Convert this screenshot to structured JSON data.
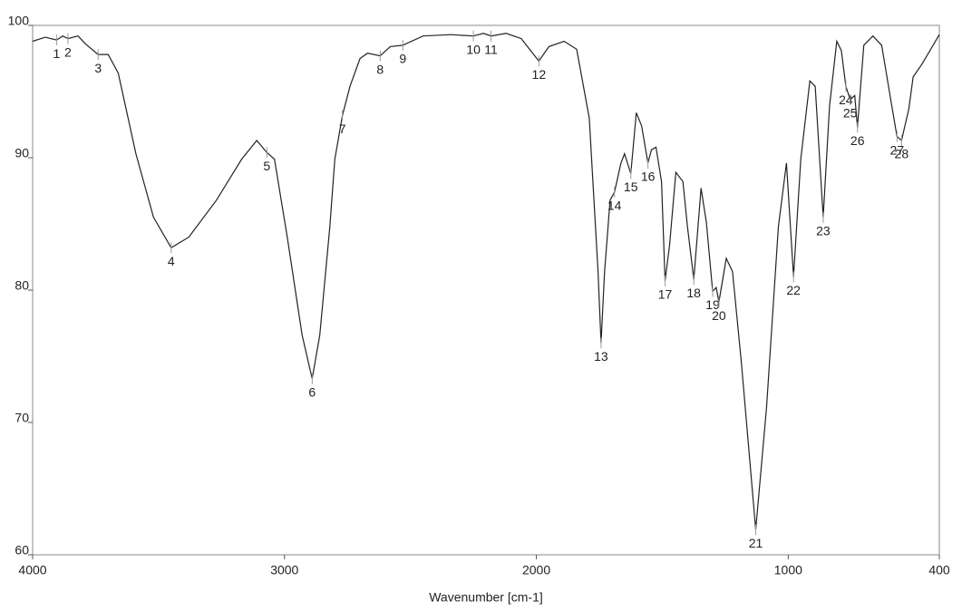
{
  "chart_data": {
    "type": "line",
    "xlabel": "Wavenumber [cm-1]",
    "color": "#222222",
    "xlim": [
      4000,
      400
    ],
    "ylim": [
      60,
      100
    ],
    "xticks": [
      4000,
      3000,
      2000,
      1000,
      400
    ],
    "yticks": [
      60,
      70,
      80,
      90,
      100
    ],
    "x": [
      4000,
      3950,
      3905,
      3880,
      3860,
      3820,
      3790,
      3740,
      3700,
      3660,
      3590,
      3520,
      3450,
      3380,
      3270,
      3170,
      3110,
      3070,
      3040,
      2990,
      2930,
      2890,
      2860,
      2820,
      2800,
      2770,
      2740,
      2700,
      2670,
      2620,
      2580,
      2530,
      2450,
      2340,
      2250,
      2210,
      2180,
      2120,
      2060,
      1990,
      1950,
      1890,
      1840,
      1790,
      1755,
      1743,
      1729,
      1707,
      1690,
      1664,
      1650,
      1625,
      1603,
      1582,
      1557,
      1543,
      1525,
      1503,
      1489,
      1471,
      1446,
      1418,
      1400,
      1375,
      1346,
      1325,
      1300,
      1286,
      1275,
      1246,
      1221,
      1186,
      1129,
      1086,
      1039,
      1007,
      979,
      950,
      914,
      893,
      861,
      836,
      807,
      789,
      771,
      754,
      736,
      725,
      700,
      664,
      629,
      593,
      568,
      550,
      521,
      504,
      468,
      400
    ],
    "values": [
      98.8,
      99.1,
      98.9,
      99.2,
      99.0,
      99.2,
      98.6,
      97.8,
      97.8,
      96.4,
      90.3,
      85.5,
      83.2,
      84.0,
      86.8,
      89.9,
      91.3,
      90.4,
      89.9,
      84.1,
      76.6,
      73.3,
      76.6,
      84.8,
      89.9,
      93.2,
      95.4,
      97.5,
      97.9,
      97.7,
      98.4,
      98.5,
      99.2,
      99.3,
      99.2,
      99.4,
      99.2,
      99.4,
      99.0,
      97.3,
      98.4,
      98.8,
      98.2,
      93.0,
      81.4,
      76.0,
      81.4,
      86.8,
      87.4,
      89.6,
      90.3,
      88.8,
      93.4,
      92.4,
      89.6,
      90.6,
      90.8,
      88.2,
      80.7,
      83.4,
      88.9,
      88.2,
      84.8,
      80.8,
      87.7,
      85.1,
      79.9,
      80.2,
      79.1,
      82.4,
      81.4,
      74.5,
      61.9,
      71.1,
      84.8,
      89.6,
      81.0,
      89.9,
      95.8,
      95.4,
      85.5,
      93.9,
      98.8,
      98.1,
      95.4,
      94.4,
      94.7,
      92.3,
      98.5,
      99.2,
      98.5,
      94.4,
      91.6,
      91.3,
      93.7,
      96.1,
      97.1,
      99.3
    ],
    "annotations": [
      {
        "label": "1",
        "x": 3905,
        "y": 98.9
      },
      {
        "label": "2",
        "x": 3860,
        "y": 99.0
      },
      {
        "label": "3",
        "x": 3740,
        "y": 97.8
      },
      {
        "label": "4",
        "x": 3450,
        "y": 83.2
      },
      {
        "label": "5",
        "x": 3070,
        "y": 90.4
      },
      {
        "label": "6",
        "x": 2890,
        "y": 73.3
      },
      {
        "label": "7",
        "x": 2770,
        "y": 93.2
      },
      {
        "label": "8",
        "x": 2620,
        "y": 97.7
      },
      {
        "label": "9",
        "x": 2530,
        "y": 98.5
      },
      {
        "label": "10",
        "x": 2250,
        "y": 99.2
      },
      {
        "label": "11",
        "x": 2180,
        "y": 99.2
      },
      {
        "label": "12",
        "x": 1990,
        "y": 97.3
      },
      {
        "label": "13",
        "x": 1743,
        "y": 76.0
      },
      {
        "label": "14",
        "x": 1690,
        "y": 87.4
      },
      {
        "label": "15",
        "x": 1625,
        "y": 88.8
      },
      {
        "label": "16",
        "x": 1557,
        "y": 89.6
      },
      {
        "label": "17",
        "x": 1489,
        "y": 80.7
      },
      {
        "label": "18",
        "x": 1375,
        "y": 80.8
      },
      {
        "label": "19",
        "x": 1300,
        "y": 79.9
      },
      {
        "label": "20",
        "x": 1275,
        "y": 79.1
      },
      {
        "label": "21",
        "x": 1129,
        "y": 61.9
      },
      {
        "label": "22",
        "x": 979,
        "y": 81.0
      },
      {
        "label": "23",
        "x": 861,
        "y": 85.5
      },
      {
        "label": "24",
        "x": 771,
        "y": 95.4
      },
      {
        "label": "25",
        "x": 754,
        "y": 94.4
      },
      {
        "label": "26",
        "x": 725,
        "y": 92.3
      },
      {
        "label": "27",
        "x": 568,
        "y": 91.6
      },
      {
        "label": "28",
        "x": 550,
        "y": 91.3
      }
    ]
  }
}
